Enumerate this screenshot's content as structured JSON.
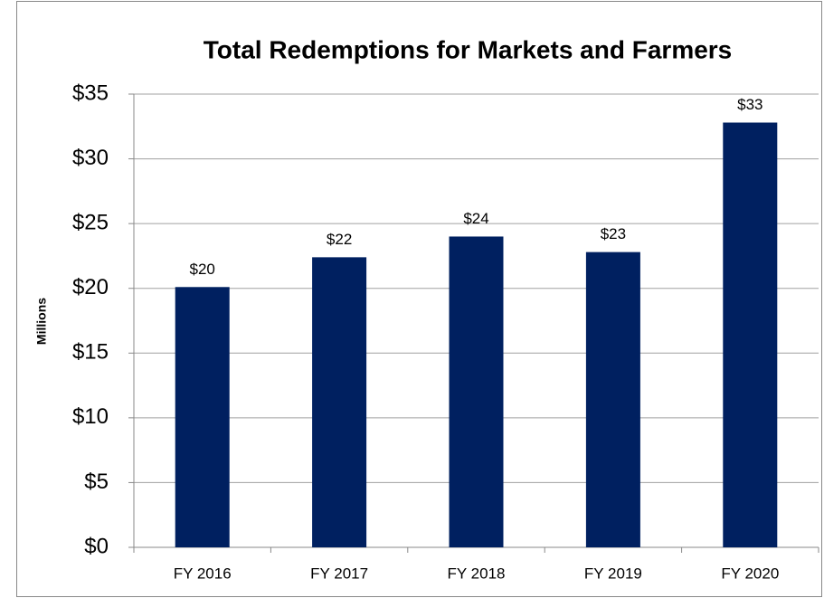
{
  "chart_data": {
    "type": "bar",
    "title": "Total Redemptions for Markets and Farmers",
    "y_label": "Millions",
    "categories": [
      "FY 2016",
      "FY 2017",
      "FY 2018",
      "FY 2019",
      "FY 2020"
    ],
    "values": [
      20.1,
      22.4,
      24.0,
      22.8,
      32.8
    ],
    "value_labels": [
      "$20",
      "$22",
      "$24",
      "$23",
      "$33"
    ],
    "color": "#002060",
    "ylim": [
      0,
      35
    ],
    "yticks": [
      {
        "value": 0,
        "label": "$0"
      },
      {
        "value": 5,
        "label": "$5"
      },
      {
        "value": 10,
        "label": "$10"
      },
      {
        "value": 15,
        "label": "$15"
      },
      {
        "value": 20,
        "label": "$20"
      },
      {
        "value": 25,
        "label": "$25"
      },
      {
        "value": 30,
        "label": "$30"
      },
      {
        "value": 35,
        "label": "$35"
      }
    ],
    "grid": true
  }
}
